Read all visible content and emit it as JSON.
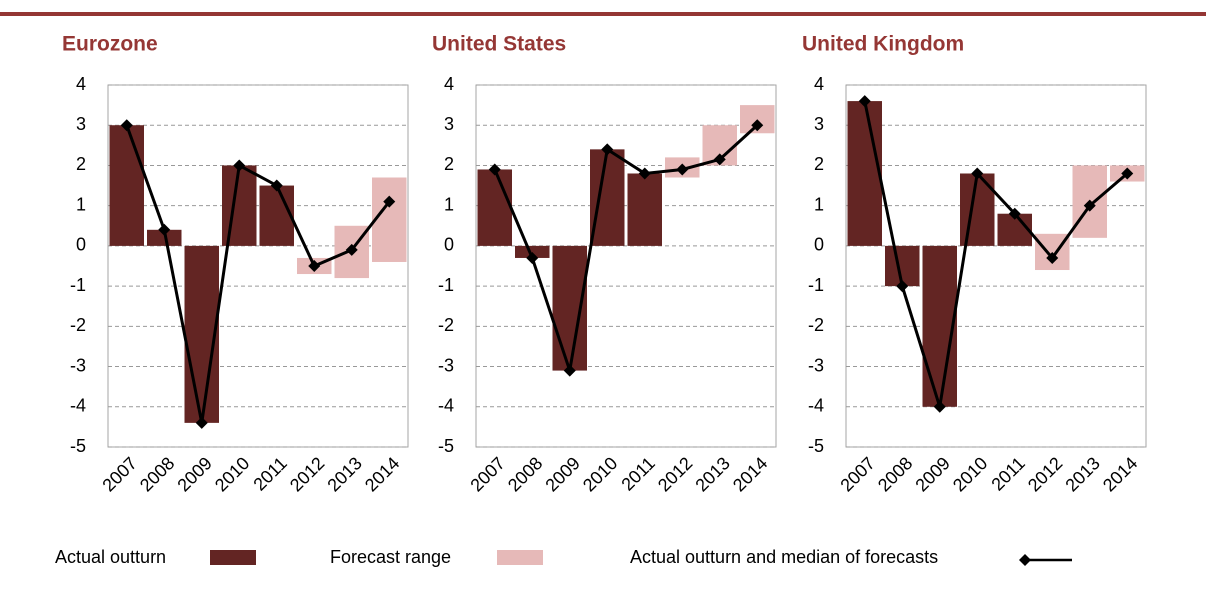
{
  "chart_data": [
    {
      "type": "combo",
      "title": "Eurozone",
      "categories": [
        "2007",
        "2008",
        "2009",
        "2010",
        "2011",
        "2012",
        "2013",
        "2014"
      ],
      "ylim": [
        -5,
        4
      ],
      "yticks": [
        -5,
        -4,
        -3,
        -2,
        -1,
        0,
        1,
        2,
        3,
        4
      ],
      "grid": true,
      "series": [
        {
          "name": "Actual outturn",
          "color": "#632523",
          "kind": "bar",
          "values": [
            3.0,
            0.4,
            -4.4,
            2.0,
            1.5,
            null,
            null,
            null
          ]
        },
        {
          "name": "Forecast range",
          "color": "#e6b9b8",
          "kind": "range",
          "low": [
            null,
            null,
            null,
            null,
            null,
            -0.7,
            -0.8,
            -0.4
          ],
          "high": [
            null,
            null,
            null,
            null,
            null,
            -0.3,
            0.5,
            1.7
          ]
        },
        {
          "name": "Actual outturn and median of forecasts",
          "color": "#000000",
          "kind": "line",
          "values": [
            3.0,
            0.4,
            -4.4,
            2.0,
            1.5,
            -0.5,
            -0.1,
            1.1
          ]
        }
      ]
    },
    {
      "type": "combo",
      "title": "United States",
      "categories": [
        "2007",
        "2008",
        "2009",
        "2010",
        "2011",
        "2012",
        "2013",
        "2014"
      ],
      "ylim": [
        -5,
        4
      ],
      "yticks": [
        -5,
        -4,
        -3,
        -2,
        -1,
        0,
        1,
        2,
        3,
        4
      ],
      "grid": true,
      "series": [
        {
          "color": "#632523",
          "kind": "bar",
          "values": [
            1.9,
            -0.3,
            -3.1,
            2.4,
            1.8,
            null,
            null,
            null
          ]
        },
        {
          "color": "#e6b9b8",
          "kind": "range",
          "low": [
            null,
            null,
            null,
            null,
            null,
            1.7,
            2.0,
            2.8
          ],
          "high": [
            null,
            null,
            null,
            null,
            null,
            2.2,
            3.0,
            3.5
          ]
        },
        {
          "color": "#000000",
          "kind": "line",
          "values": [
            1.9,
            -0.3,
            -3.1,
            2.4,
            1.8,
            1.9,
            2.15,
            3.0
          ]
        }
      ]
    },
    {
      "type": "combo",
      "title": "United Kingdom",
      "categories": [
        "2007",
        "2008",
        "2009",
        "2010",
        "2011",
        "2012",
        "2013",
        "2014"
      ],
      "ylim": [
        -5,
        4
      ],
      "yticks": [
        -5,
        -4,
        -3,
        -2,
        -1,
        0,
        1,
        2,
        3,
        4
      ],
      "grid": true,
      "series": [
        {
          "color": "#632523",
          "kind": "bar",
          "values": [
            3.6,
            -1.0,
            -4.0,
            1.8,
            0.8,
            null,
            null,
            null
          ]
        },
        {
          "color": "#e6b9b8",
          "kind": "range",
          "low": [
            null,
            null,
            null,
            null,
            null,
            -0.6,
            0.2,
            1.6
          ],
          "high": [
            null,
            null,
            null,
            null,
            null,
            0.3,
            2.0,
            2.0
          ]
        },
        {
          "color": "#000000",
          "kind": "line",
          "values": [
            3.6,
            -1.0,
            -4.0,
            1.8,
            0.8,
            -0.3,
            1.0,
            1.8
          ]
        }
      ]
    }
  ]
}
